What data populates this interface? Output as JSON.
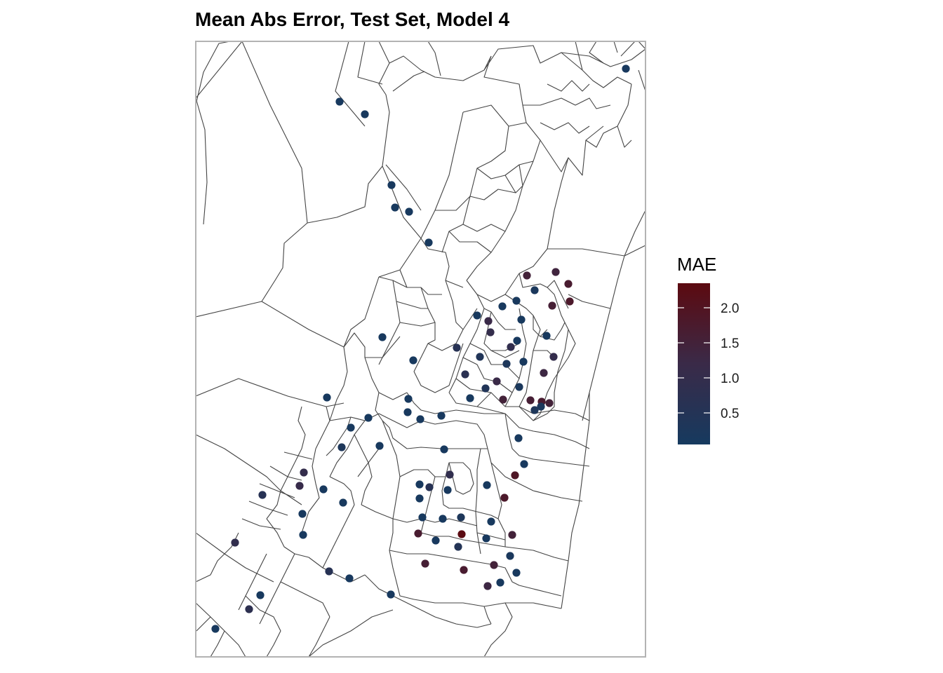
{
  "title": "Mean Abs Error, Test Set, Model 4",
  "legend": {
    "title": "MAE",
    "ticks": [
      {
        "value": 2.0,
        "label": "2.0"
      },
      {
        "value": 1.5,
        "label": "1.5"
      },
      {
        "value": 1.0,
        "label": "1.0"
      },
      {
        "value": 0.5,
        "label": "0.5"
      }
    ],
    "range": [
      0.05,
      2.35
    ],
    "low_color": "#163a5f",
    "high_color": "#5c0a10"
  },
  "colors": {
    "background": "#ffffff",
    "boundary": "#444444",
    "frame": "#b3b3b3"
  },
  "chart_data": {
    "type": "scatter",
    "title": "Mean Abs Error, Test Set, Model 4",
    "color_scale": {
      "name": "MAE",
      "min": 0.05,
      "max": 2.35
    },
    "points": [
      {
        "mae": 0.1
      },
      {
        "mae": 0.1
      },
      {
        "mae": 0.1
      },
      {
        "mae": 0.1
      },
      {
        "mae": 0.1
      },
      {
        "mae": 0.1
      },
      {
        "mae": 0.1
      },
      {
        "mae": 1.5
      },
      {
        "mae": 1.4
      },
      {
        "mae": 1.7
      },
      {
        "mae": 1.8
      },
      {
        "mae": 0.2
      },
      {
        "mae": 0.15
      },
      {
        "mae": 1.6
      },
      {
        "mae": 0.1
      },
      {
        "mae": 0.1
      },
      {
        "mae": 0.1
      },
      {
        "mae": 1.2
      },
      {
        "mae": 0.1
      },
      {
        "mae": 1.0
      },
      {
        "mae": 0.9
      },
      {
        "mae": 0.1
      },
      {
        "mae": 0.1
      },
      {
        "mae": 0.6
      },
      {
        "mae": 0.1
      },
      {
        "mae": 0.3
      },
      {
        "mae": 0.1
      },
      {
        "mae": 1.0
      },
      {
        "mae": 0.7
      },
      {
        "mae": 0.4
      },
      {
        "mae": 1.2
      },
      {
        "mae": 0.2
      },
      {
        "mae": 0.4
      },
      {
        "mae": 1.3
      },
      {
        "mae": 0.1
      },
      {
        "mae": 1.5
      },
      {
        "mae": 1.6
      },
      {
        "mae": 0.3
      },
      {
        "mae": 1.7
      },
      {
        "mae": 1.5
      },
      {
        "mae": 0.2
      },
      {
        "mae": 0.1
      },
      {
        "mae": 0.1
      },
      {
        "mae": 0.1
      },
      {
        "mae": 0.1
      },
      {
        "mae": 0.1
      },
      {
        "mae": 0.1
      },
      {
        "mae": 0.1
      },
      {
        "mae": 0.3
      },
      {
        "mae": 0.1
      },
      {
        "mae": 1.0
      },
      {
        "mae": 1.1
      },
      {
        "mae": 0.1
      },
      {
        "mae": 0.1
      },
      {
        "mae": 0.1
      },
      {
        "mae": 0.1
      },
      {
        "mae": 1.9
      },
      {
        "mae": 0.1
      },
      {
        "mae": 0.6
      },
      {
        "mae": 0.9
      },
      {
        "mae": 0.6
      },
      {
        "mae": 0.1
      },
      {
        "mae": 0.1
      },
      {
        "mae": 1.8
      },
      {
        "mae": 0.1
      },
      {
        "mae": 0.1
      },
      {
        "mae": 0.1
      },
      {
        "mae": 0.1
      },
      {
        "mae": 0.3
      },
      {
        "mae": 0.1
      },
      {
        "mae": 2.3
      },
      {
        "mae": 1.5
      },
      {
        "mae": 0.1
      },
      {
        "mae": 0.9
      },
      {
        "mae": 1.7
      },
      {
        "mae": 0.1
      },
      {
        "mae": 0.5
      },
      {
        "mae": 0.1
      },
      {
        "mae": 0.1
      },
      {
        "mae": 1.6
      },
      {
        "mae": 1.7
      },
      {
        "mae": 1.5
      },
      {
        "mae": 0.2
      },
      {
        "mae": 1.3
      },
      {
        "mae": 0.1
      },
      {
        "mae": 0.1
      },
      {
        "mae": 0.1
      },
      {
        "mae": 0.8
      },
      {
        "mae": 0.6
      },
      {
        "mae": 0.1
      },
      {
        "mae": 0.1
      },
      {
        "mae": 0.1
      }
    ]
  }
}
